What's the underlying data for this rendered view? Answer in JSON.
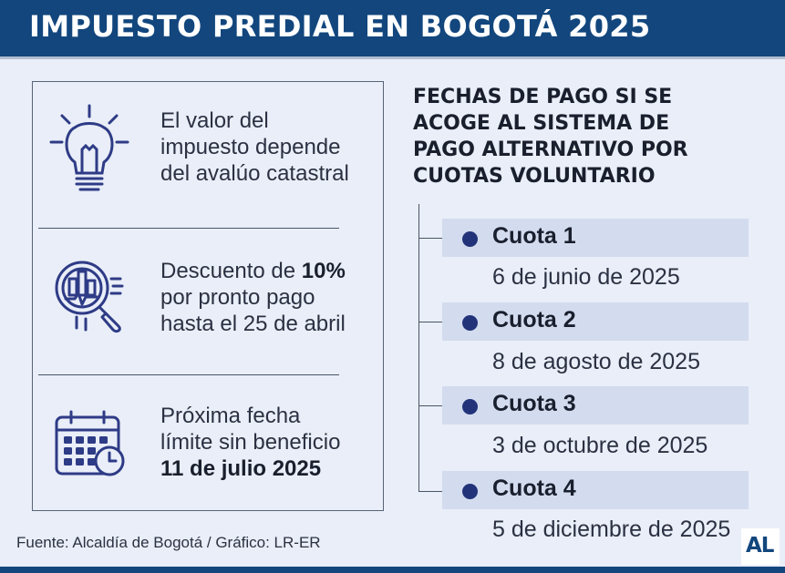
{
  "header": {
    "title": "IMPUESTO PREDIAL EN BOGOTÁ 2025"
  },
  "info": {
    "item1": {
      "line1": "El valor del",
      "line2": "impuesto depende",
      "line3": "del avalúo catastral"
    },
    "item2": {
      "line1_pre": "Descuento de ",
      "line1_bold": "10%",
      "line2": "por pronto pago",
      "line3": "hasta el 25 de abril"
    },
    "item3": {
      "line1": "Próxima fecha",
      "line2": "límite sin beneficio",
      "line3_bold": "11 de julio 2025"
    }
  },
  "fechas": {
    "title_lines": [
      "FECHAS DE PAGO SI SE",
      "ACOGE AL SISTEMA DE",
      "PAGO ALTERNATIVO POR",
      "CUOTAS VOLUNTARIO"
    ],
    "cuotas": [
      {
        "label": "Cuota 1",
        "date": "6 de junio de 2025"
      },
      {
        "label": "Cuota 2",
        "date": "8 de agosto de 2025"
      },
      {
        "label": "Cuota 3",
        "date": "3 de octubre de 2025"
      },
      {
        "label": "Cuota 4",
        "date": "5 de diciembre de 2025"
      }
    ]
  },
  "footer": {
    "source": "Fuente: Alcaldía de Bogotá / Gráfico: LR-ER",
    "logo": "AL"
  },
  "colors": {
    "header": "#12467d",
    "background": "#e9eef8",
    "accent": "#22337a",
    "bar": "#d3dcee"
  },
  "icons": [
    "lightbulb-icon",
    "magnifier-chart-icon",
    "calendar-clock-icon"
  ]
}
